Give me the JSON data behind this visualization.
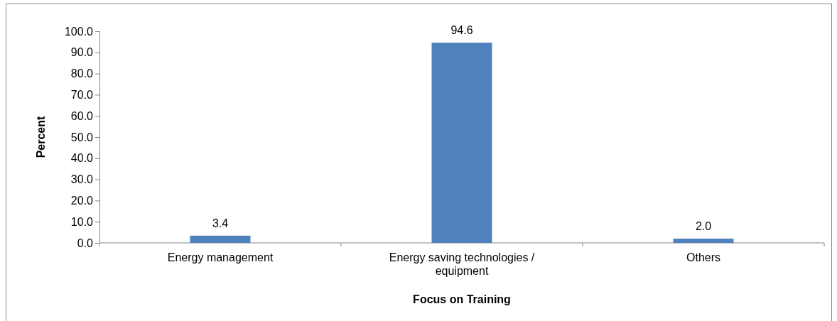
{
  "chart_data": {
    "type": "bar",
    "xlabel": "Focus on Training",
    "ylabel": "Percent",
    "categories": [
      "Energy management",
      "Energy saving technologies / equipment",
      "Others"
    ],
    "values": [
      3.4,
      94.6,
      2.0
    ],
    "value_labels": [
      "3.4",
      "94.6",
      "2.0"
    ],
    "color": "#4f81bd",
    "ylim": [
      0,
      100
    ],
    "yticks": [
      {
        "value": 0,
        "label": "0.0"
      },
      {
        "value": 10,
        "label": "10.0"
      },
      {
        "value": 20,
        "label": "20.0"
      },
      {
        "value": 30,
        "label": "30.0"
      },
      {
        "value": 40,
        "label": "40.0"
      },
      {
        "value": 50,
        "label": "50.0"
      },
      {
        "value": 60,
        "label": "60.0"
      },
      {
        "value": 70,
        "label": "70.0"
      },
      {
        "value": 80,
        "label": "80.0"
      },
      {
        "value": 90,
        "label": "90.0"
      },
      {
        "value": 100,
        "label": "100.0"
      }
    ],
    "grid": false
  }
}
